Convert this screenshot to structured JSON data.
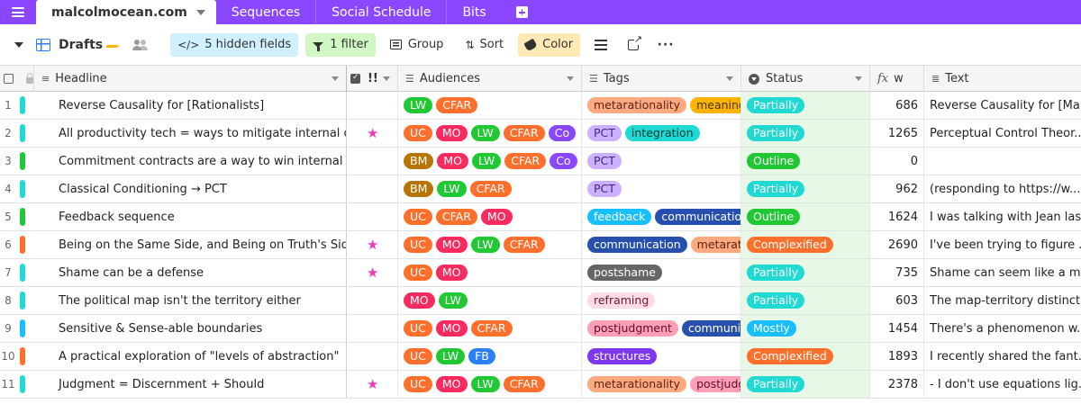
{
  "topbar": {
    "base_name": "malcolmocean.com",
    "tabs": [
      "Sequences",
      "Social Schedule",
      "Bits"
    ]
  },
  "toolbar": {
    "view_name": "Drafts",
    "hidden_fields": "5 hidden fields",
    "filter": "1 filter",
    "group": "Group",
    "sort": "Sort",
    "color": "Color"
  },
  "columns": {
    "headline": "Headline",
    "star": "!!",
    "audiences": "Audiences",
    "tags": "Tags",
    "status": "Status",
    "w": "w",
    "text": "Text"
  },
  "colors": {
    "topbar": "#8b46ff",
    "status_cell_bg": "#e8f8e6",
    "star": "#ee3bbe"
  },
  "pill_colors": {
    "LW": "#20c933",
    "CFAR": "#ff6f2c",
    "UC": "#ff6f2c",
    "MO": "#f82b60",
    "Co": "#8b46ff",
    "BM": "#b87503",
    "FB": "#2d7ff9",
    "metarationality": "#ffa981",
    "meaning": "#fcb400",
    "PCT": "#cdb0ff",
    "integration": "#20d9d2",
    "feedback": "#18bfff",
    "communication": "#2750ae",
    "postshame": "#666666",
    "reframing": "#ffdce5",
    "postjudgment": "#ff9eb7",
    "structures": "#7c37ef",
    "Partially": "#20d9d2",
    "Outline": "#20c933",
    "Complexified": "#ff6f2c",
    "Mostly": "#18bfff"
  },
  "pill_text_colors": {
    "PCT": "#3f2585",
    "metarationality": "#5a2410",
    "meaning": "#4a3500",
    "integration": "#063b38",
    "feedback": "#ffffff",
    "reframing": "#6b1836",
    "postjudgment": "#5a0f23"
  },
  "rows": [
    {
      "num": "1",
      "bar": "#20d9d2",
      "headline": "Reverse Causality for [Rationalists]",
      "star": "",
      "audiences": [
        "LW",
        "CFAR"
      ],
      "tags": [
        "metarationality",
        "meaning"
      ],
      "status": "Partially",
      "w": "686",
      "text": "Reverse Causality for [Ma..."
    },
    {
      "num": "2",
      "bar": "#20d9d2",
      "headline": "All productivity tech = ways to mitigate internal con...",
      "star": "★",
      "audiences": [
        "UC",
        "MO",
        "LW",
        "CFAR",
        "Co"
      ],
      "tags": [
        "PCT",
        "integration"
      ],
      "status": "Partially",
      "w": "1265",
      "text": "Perceptual Control Theor..."
    },
    {
      "num": "3",
      "bar": "#20c933",
      "headline": "Commitment contracts are a way to win internal con...",
      "star": "",
      "audiences": [
        "BM",
        "MO",
        "LW",
        "CFAR",
        "Co"
      ],
      "tags": [
        "PCT"
      ],
      "status": "Outline",
      "w": "0",
      "text": ""
    },
    {
      "num": "4",
      "bar": "#20d9d2",
      "headline": "Classical Conditioning → PCT",
      "star": "",
      "audiences": [
        "BM",
        "LW",
        "CFAR"
      ],
      "tags": [
        "PCT"
      ],
      "status": "Partially",
      "w": "962",
      "text": "(responding to https://w..."
    },
    {
      "num": "5",
      "bar": "#20c933",
      "headline": "Feedback sequence",
      "star": "",
      "audiences": [
        "UC",
        "CFAR",
        "MO"
      ],
      "tags": [
        "feedback",
        "communication"
      ],
      "status": "Outline",
      "w": "1624",
      "text": "I was talking with Jean las..."
    },
    {
      "num": "6",
      "bar": "#ff6f2c",
      "headline": "Being on the Same Side, and Being on Truth's Side",
      "star": "★",
      "audiences": [
        "UC",
        "MO",
        "LW",
        "CFAR"
      ],
      "tags": [
        "communication",
        "metarationality"
      ],
      "status": "Complexified",
      "w": "2690",
      "text": "I've been trying to figure ..."
    },
    {
      "num": "7",
      "bar": "#20d9d2",
      "headline": "Shame can be a defense",
      "star": "★",
      "audiences": [
        "UC",
        "MO"
      ],
      "tags": [
        "postshame"
      ],
      "status": "Partially",
      "w": "735",
      "text": "Shame can seem like a me..."
    },
    {
      "num": "8",
      "bar": "#20d9d2",
      "headline": "The political map isn't the territory either",
      "star": "",
      "audiences": [
        "MO",
        "LW"
      ],
      "tags": [
        "reframing"
      ],
      "status": "Partially",
      "w": "603",
      "text": "The map-territory distinct..."
    },
    {
      "num": "9",
      "bar": "#18bfff",
      "headline": "Sensitive & Sense-able boundaries",
      "star": "",
      "audiences": [
        "UC",
        "MO",
        "CFAR"
      ],
      "tags": [
        "postjudgment",
        "communication"
      ],
      "status": "Mostly",
      "w": "1454",
      "text": "There's a phenomenon w..."
    },
    {
      "num": "10",
      "bar": "#ff6f2c",
      "headline": "A practical exploration of \"levels of abstraction\"",
      "star": "",
      "audiences": [
        "UC",
        "LW",
        "FB"
      ],
      "tags": [
        "structures"
      ],
      "status": "Complexified",
      "w": "1893",
      "text": "I recently shared the fant..."
    },
    {
      "num": "11",
      "bar": "#20d9d2",
      "headline": "Judgment = Discernment + Should",
      "star": "★",
      "audiences": [
        "UC",
        "MO",
        "LW",
        "CFAR"
      ],
      "tags": [
        "metarationality",
        "postjudgment"
      ],
      "status": "Partially",
      "w": "2378",
      "text": "- I don't use equations lig..."
    }
  ]
}
